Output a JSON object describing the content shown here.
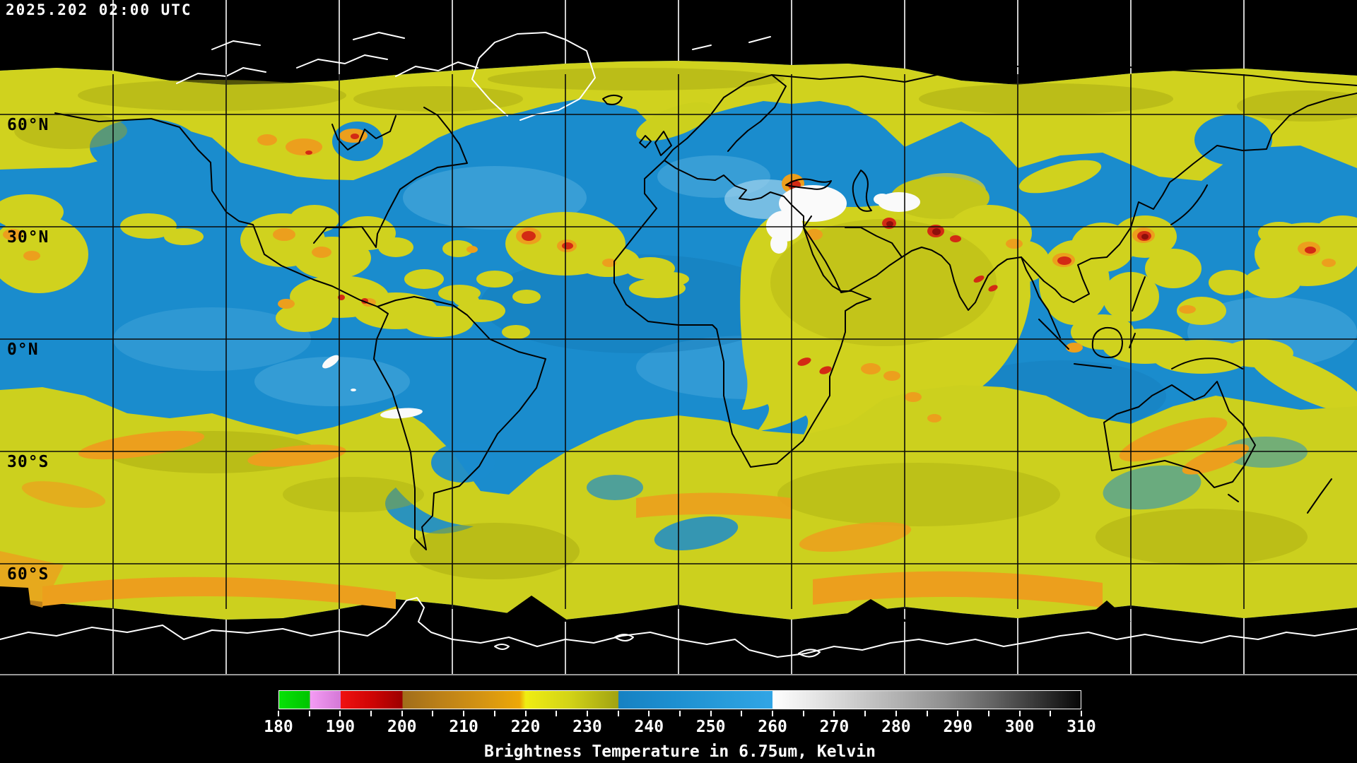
{
  "header": {
    "timestamp": "2025.202 02:00 UTC"
  },
  "map": {
    "latitude_labels": [
      {
        "text": "60°N"
      },
      {
        "text": "30°N"
      },
      {
        "text": "0°N"
      },
      {
        "text": "30°S"
      },
      {
        "text": "60°S"
      }
    ],
    "grid": {
      "lon_step_deg": 30,
      "lat_step_deg": 30
    },
    "colors": {
      "background": "#000000",
      "ocean_blue": "#1a8ccd",
      "cloud_yellow": "#d0d21e",
      "cloud_olive": "#a6a711",
      "cloud_orange": "#ec9f1d",
      "cloud_red": "#d32a14",
      "cloud_dark_red": "#8d0f0b",
      "warm_white": "#fafafa",
      "coast_black": "#000000",
      "coast_white": "#ffffff",
      "frame_gray": "#989898"
    }
  },
  "colorbar": {
    "caption": "Brightness Temperature in 6.75um, Kelvin",
    "unit": "Kelvin",
    "min_k": 180,
    "max_k": 310,
    "tick_step_minor": 5,
    "tick_step_major": 10,
    "major_ticks": [
      180,
      190,
      200,
      210,
      220,
      230,
      240,
      250,
      260,
      270,
      280,
      290,
      300,
      310
    ],
    "stops": [
      {
        "v": 180,
        "c": "#06e206"
      },
      {
        "v": 185,
        "c": "#00c400"
      },
      {
        "v": 185,
        "c": "#f49cf4"
      },
      {
        "v": 190,
        "c": "#d478d6"
      },
      {
        "v": 190,
        "c": "#ef1111"
      },
      {
        "v": 195,
        "c": "#cf0404"
      },
      {
        "v": 200,
        "c": "#9c0000"
      },
      {
        "v": 200,
        "c": "#a06d1a"
      },
      {
        "v": 206,
        "c": "#bb8018"
      },
      {
        "v": 213,
        "c": "#d49413"
      },
      {
        "v": 219,
        "c": "#eda807"
      },
      {
        "v": 220,
        "c": "#efed12"
      },
      {
        "v": 227,
        "c": "#d3d417"
      },
      {
        "v": 235,
        "c": "#a0a212"
      },
      {
        "v": 235,
        "c": "#1681c2"
      },
      {
        "v": 244,
        "c": "#1d8fd0"
      },
      {
        "v": 252,
        "c": "#279bda"
      },
      {
        "v": 260,
        "c": "#31a5e5"
      },
      {
        "v": 260,
        "c": "#ffffff"
      },
      {
        "v": 266,
        "c": "#e9e9e9"
      },
      {
        "v": 272,
        "c": "#d2d2d2"
      },
      {
        "v": 280,
        "c": "#b2b2b2"
      },
      {
        "v": 288,
        "c": "#8f8f8f"
      },
      {
        "v": 296,
        "c": "#626262"
      },
      {
        "v": 304,
        "c": "#2f2f2f"
      },
      {
        "v": 310,
        "c": "#060606"
      }
    ]
  }
}
